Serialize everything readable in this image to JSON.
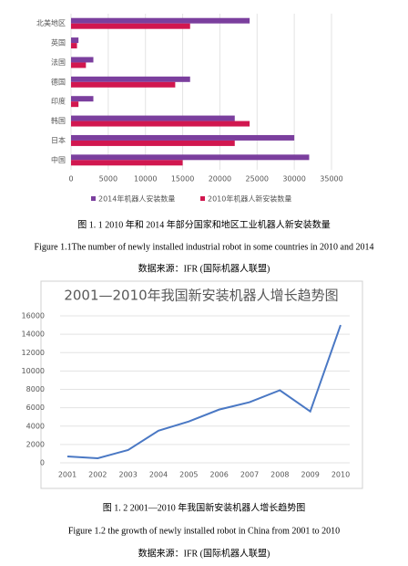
{
  "chart_data": [
    {
      "type": "hbar",
      "categories": [
        "北美地区",
        "英国",
        "法国",
        "德国",
        "印度",
        "韩国",
        "日本",
        "中国"
      ],
      "series": [
        {
          "name": "2014年机器人安装数量",
          "color": "#7b3f9e",
          "values": [
            24000,
            1000,
            3000,
            16000,
            3000,
            22000,
            30000,
            32000
          ]
        },
        {
          "name": "2010年机器人新安装数量",
          "color": "#d1174f",
          "values": [
            16000,
            800,
            2000,
            14000,
            1000,
            24000,
            22000,
            15000
          ]
        }
      ],
      "xlim": [
        0,
        35000
      ],
      "xticks": [
        0,
        5000,
        10000,
        15000,
        20000,
        25000,
        30000,
        35000
      ],
      "grid": true,
      "legend": "bottom"
    },
    {
      "type": "line",
      "title": "2001—2010年我国新安装机器人增长趋势图",
      "categories": [
        "2001",
        "2002",
        "2003",
        "2004",
        "2005",
        "2006",
        "2007",
        "2008",
        "2009",
        "2010"
      ],
      "values": [
        700,
        500,
        1400,
        3500,
        4500,
        5800,
        6600,
        7900,
        5600,
        15000
      ],
      "color": "#4a78c4",
      "ylim": [
        0,
        16000
      ],
      "yticks": [
        0,
        2000,
        4000,
        6000,
        8000,
        10000,
        12000,
        14000,
        16000
      ],
      "grid": true
    }
  ],
  "captions": [
    {
      "cn": "图 1. 1  2010 年和 2014 年部分国家和地区工业机器人新安装数量",
      "en": "Figure 1.1The number of newly installed industrial robot in some countries in 2010 and 2014",
      "source": "数据来源：IFR (国际机器人联盟)"
    },
    {
      "cn": "图 1. 2  2001—2010 年我国新安装机器人增长趋势图",
      "en": "Figure 1.2 the growth of newly installed robot in China from 2001 to 2010",
      "source": "数据来源：IFR (国际机器人联盟)"
    }
  ]
}
